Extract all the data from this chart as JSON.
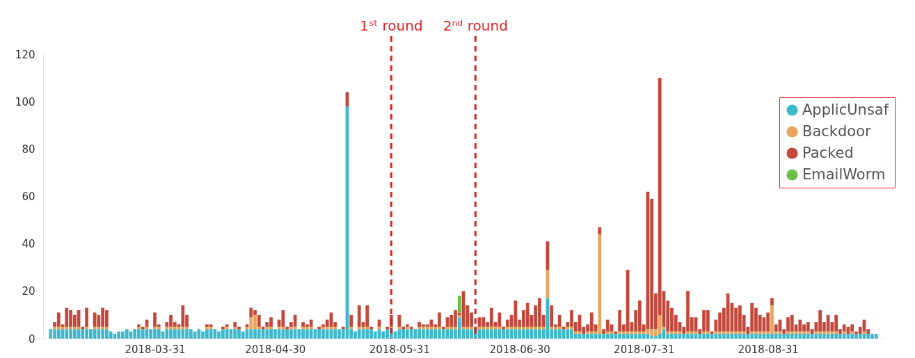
{
  "chart_data": {
    "type": "bar",
    "stacked": true,
    "x": [
      "2018-03-05",
      "2018-03-06",
      "2018-03-07",
      "2018-03-08",
      "2018-03-09",
      "2018-03-10",
      "2018-03-11",
      "2018-03-12",
      "2018-03-13",
      "2018-03-14",
      "2018-03-15",
      "2018-03-16",
      "2018-03-17",
      "2018-03-18",
      "2018-03-19",
      "2018-03-20",
      "2018-03-21",
      "2018-03-22",
      "2018-03-23",
      "2018-03-24",
      "2018-03-25",
      "2018-03-26",
      "2018-03-27",
      "2018-03-28",
      "2018-03-29",
      "2018-03-30",
      "2018-03-31",
      "2018-04-01",
      "2018-04-02",
      "2018-04-03",
      "2018-04-04",
      "2018-04-05",
      "2018-04-06",
      "2018-04-07",
      "2018-04-08",
      "2018-04-09",
      "2018-04-10",
      "2018-04-11",
      "2018-04-12",
      "2018-04-13",
      "2018-04-14",
      "2018-04-15",
      "2018-04-16",
      "2018-04-17",
      "2018-04-18",
      "2018-04-19",
      "2018-04-20",
      "2018-04-21",
      "2018-04-22",
      "2018-04-23",
      "2018-04-24",
      "2018-04-25",
      "2018-04-26",
      "2018-04-27",
      "2018-04-28",
      "2018-04-29",
      "2018-04-30",
      "2018-05-01",
      "2018-05-02",
      "2018-05-03",
      "2018-05-04",
      "2018-05-05",
      "2018-05-06",
      "2018-05-07",
      "2018-05-08",
      "2018-05-09",
      "2018-05-10",
      "2018-05-11",
      "2018-05-12",
      "2018-05-13",
      "2018-05-14",
      "2018-05-15",
      "2018-05-16",
      "2018-05-17",
      "2018-05-18",
      "2018-05-19",
      "2018-05-20",
      "2018-05-21",
      "2018-05-22",
      "2018-05-23",
      "2018-05-24",
      "2018-05-25",
      "2018-05-26",
      "2018-05-27",
      "2018-05-28",
      "2018-05-29",
      "2018-05-30",
      "2018-05-31",
      "2018-06-01",
      "2018-06-02",
      "2018-06-03",
      "2018-06-04",
      "2018-06-05",
      "2018-06-06",
      "2018-06-07",
      "2018-06-08",
      "2018-06-09",
      "2018-06-10",
      "2018-06-11",
      "2018-06-12",
      "2018-06-13",
      "2018-06-14",
      "2018-06-15",
      "2018-06-16",
      "2018-06-17",
      "2018-06-18",
      "2018-06-19",
      "2018-06-20",
      "2018-06-21",
      "2018-06-22",
      "2018-06-23",
      "2018-06-24",
      "2018-06-25",
      "2018-06-26",
      "2018-06-27",
      "2018-06-28",
      "2018-06-29",
      "2018-06-30",
      "2018-07-01",
      "2018-07-02",
      "2018-07-03",
      "2018-07-04",
      "2018-07-05",
      "2018-07-06",
      "2018-07-07",
      "2018-07-08",
      "2018-07-09",
      "2018-07-10",
      "2018-07-11",
      "2018-07-12",
      "2018-07-13",
      "2018-07-14",
      "2018-07-15",
      "2018-07-16",
      "2018-07-17",
      "2018-07-18",
      "2018-07-19",
      "2018-07-20",
      "2018-07-21",
      "2018-07-22",
      "2018-07-23",
      "2018-07-24",
      "2018-07-25",
      "2018-07-26",
      "2018-07-27",
      "2018-07-28",
      "2018-07-29",
      "2018-07-30",
      "2018-07-31",
      "2018-08-01",
      "2018-08-02",
      "2018-08-03",
      "2018-08-04",
      "2018-08-05",
      "2018-08-06",
      "2018-08-07",
      "2018-08-08",
      "2018-08-09",
      "2018-08-10",
      "2018-08-11",
      "2018-08-12",
      "2018-08-13",
      "2018-08-14",
      "2018-08-15",
      "2018-08-16",
      "2018-08-17",
      "2018-08-18",
      "2018-08-19",
      "2018-08-20",
      "2018-08-21",
      "2018-08-22",
      "2018-08-23",
      "2018-08-24",
      "2018-08-25",
      "2018-08-26",
      "2018-08-27",
      "2018-08-28",
      "2018-08-29",
      "2018-08-30",
      "2018-08-31",
      "2018-09-01",
      "2018-09-02",
      "2018-09-03",
      "2018-09-04",
      "2018-09-05",
      "2018-09-06",
      "2018-09-07",
      "2018-09-08",
      "2018-09-09",
      "2018-09-10",
      "2018-09-11",
      "2018-09-12",
      "2018-09-13",
      "2018-09-14",
      "2018-09-15",
      "2018-09-16",
      "2018-09-17",
      "2018-09-18",
      "2018-09-19",
      "2018-09-20",
      "2018-09-21",
      "2018-09-22",
      "2018-09-23",
      "2018-09-24",
      "2018-09-25",
      "2018-09-26",
      "2018-09-27"
    ],
    "series": [
      {
        "name": "ApplicUnsaf",
        "color": "#3fb8cc",
        "values": [
          4,
          4,
          4,
          4,
          4,
          4,
          4,
          4,
          4,
          4,
          4,
          4,
          4,
          4,
          4,
          3,
          2,
          3,
          3,
          4,
          3,
          4,
          4,
          4,
          4,
          4,
          4,
          4,
          3,
          4,
          4,
          4,
          4,
          4,
          4,
          4,
          3,
          4,
          3,
          4,
          4,
          4,
          3,
          4,
          4,
          4,
          4,
          4,
          3,
          4,
          4,
          4,
          4,
          4,
          4,
          4,
          4,
          4,
          4,
          4,
          4,
          4,
          4,
          4,
          4,
          4,
          4,
          4,
          4,
          4,
          4,
          4,
          4,
          4,
          98,
          4,
          3,
          4,
          4,
          4,
          4,
          3,
          4,
          3,
          4,
          4,
          3,
          4,
          4,
          4,
          4,
          4,
          4,
          4,
          4,
          4,
          4,
          4,
          4,
          4,
          4,
          4,
          9,
          4,
          4,
          4,
          4,
          4,
          4,
          4,
          4,
          4,
          4,
          4,
          4,
          4,
          4,
          4,
          4,
          4,
          4,
          4,
          4,
          4,
          17,
          4,
          4,
          4,
          4,
          4,
          4,
          2,
          2,
          2,
          2,
          2,
          2,
          2,
          2,
          2,
          2,
          2,
          2,
          2,
          2,
          2,
          2,
          2,
          2,
          2,
          1,
          1,
          2,
          4,
          2,
          2,
          2,
          2,
          2,
          2,
          2,
          2,
          2,
          2,
          2,
          2,
          2,
          2,
          2,
          2,
          2,
          2,
          2,
          2,
          2,
          2,
          2,
          2,
          2,
          2,
          2,
          2,
          2,
          2,
          2,
          2,
          2,
          2,
          2,
          2,
          2,
          2,
          2,
          2,
          2,
          2,
          2,
          2,
          2,
          2,
          2,
          2,
          2,
          2,
          2,
          2,
          2
        ]
      },
      {
        "name": "Backdoor",
        "color": "#e8a55e",
        "values": [
          0,
          1,
          1,
          1,
          1,
          1,
          1,
          1,
          0,
          1,
          0,
          1,
          1,
          1,
          1,
          0,
          0,
          0,
          0,
          0,
          0,
          0,
          1,
          0,
          1,
          0,
          1,
          1,
          0,
          1,
          1,
          1,
          1,
          1,
          1,
          0,
          0,
          0,
          0,
          1,
          1,
          0,
          0,
          0,
          1,
          0,
          1,
          0,
          0,
          1,
          5,
          6,
          1,
          0,
          1,
          1,
          0,
          1,
          1,
          0,
          1,
          1,
          0,
          1,
          1,
          1,
          0,
          0,
          1,
          1,
          1,
          1,
          0,
          0,
          0,
          1,
          0,
          1,
          1,
          1,
          0,
          0,
          1,
          0,
          0,
          1,
          0,
          1,
          0,
          1,
          0,
          0,
          1,
          1,
          1,
          1,
          1,
          1,
          0,
          1,
          1,
          1,
          1,
          1,
          1,
          1,
          0,
          1,
          1,
          1,
          1,
          1,
          1,
          0,
          1,
          1,
          1,
          1,
          1,
          1,
          1,
          1,
          1,
          1,
          12,
          1,
          1,
          1,
          0,
          1,
          1,
          1,
          1,
          0,
          1,
          1,
          1,
          42,
          0,
          1,
          1,
          0,
          1,
          1,
          1,
          1,
          1,
          1,
          1,
          2,
          3,
          3,
          8,
          1,
          1,
          1,
          1,
          1,
          0,
          1,
          1,
          1,
          0,
          1,
          1,
          0,
          1,
          1,
          1,
          1,
          1,
          1,
          1,
          1,
          0,
          1,
          1,
          1,
          1,
          1,
          12,
          1,
          1,
          0,
          1,
          1,
          1,
          1,
          1,
          1,
          0,
          1,
          1,
          1,
          1,
          1,
          1,
          0,
          1,
          0,
          1,
          0,
          0,
          1,
          0,
          0,
          0
        ]
      },
      {
        "name": "Packed",
        "color": "#c1483a",
        "values": [
          0,
          2,
          6,
          1,
          8,
          7,
          5,
          7,
          1,
          8,
          0,
          6,
          5,
          8,
          7,
          0,
          0,
          0,
          0,
          0,
          0,
          0,
          1,
          1,
          3,
          0,
          6,
          1,
          0,
          2,
          5,
          2,
          1,
          9,
          5,
          0,
          0,
          0,
          0,
          1,
          1,
          0,
          0,
          1,
          1,
          0,
          2,
          1,
          0,
          1,
          4,
          2,
          5,
          1,
          2,
          4,
          0,
          3,
          7,
          1,
          2,
          5,
          0,
          2,
          1,
          3,
          0,
          1,
          1,
          3,
          6,
          2,
          0,
          1,
          6,
          5,
          0,
          9,
          2,
          9,
          1,
          0,
          3,
          0,
          1,
          5,
          0,
          5,
          1,
          1,
          1,
          0,
          2,
          1,
          1,
          3,
          1,
          6,
          1,
          4,
          5,
          7,
          1,
          15,
          9,
          6,
          1,
          4,
          4,
          2,
          8,
          2,
          6,
          1,
          3,
          5,
          11,
          3,
          7,
          10,
          5,
          9,
          12,
          5,
          12,
          9,
          1,
          5,
          1,
          2,
          7,
          4,
          7,
          3,
          3,
          8,
          3,
          3,
          2,
          5,
          3,
          1,
          9,
          3,
          26,
          4,
          9,
          13,
          3,
          58,
          55,
          15,
          100,
          15,
          13,
          10,
          7,
          4,
          3,
          17,
          6,
          6,
          2,
          9,
          9,
          1,
          5,
          8,
          10,
          16,
          12,
          10,
          11,
          7,
          3,
          12,
          10,
          7,
          6,
          8,
          3,
          3,
          5,
          2,
          6,
          7,
          3,
          5,
          3,
          4,
          2,
          4,
          9,
          4,
          7,
          4,
          7,
          2,
          3,
          3,
          3,
          1,
          3,
          5,
          2,
          0,
          0
        ]
      },
      {
        "name": "EmailWorm",
        "color": "#6cc04a",
        "values": [
          null,
          null,
          null,
          null,
          null,
          null,
          null,
          null,
          null,
          null,
          null,
          null,
          null,
          null,
          null,
          null,
          null,
          null,
          null,
          null,
          null,
          null,
          null,
          null,
          null,
          null,
          null,
          null,
          null,
          null,
          null,
          null,
          null,
          null,
          null,
          null,
          null,
          null,
          null,
          null,
          null,
          null,
          null,
          null,
          null,
          null,
          null,
          null,
          null,
          null,
          null,
          null,
          null,
          null,
          null,
          null,
          null,
          null,
          null,
          null,
          null,
          null,
          null,
          null,
          null,
          null,
          null,
          null,
          null,
          null,
          null,
          null,
          null,
          null,
          null,
          null,
          null,
          null,
          null,
          null,
          null,
          null,
          null,
          null,
          null,
          null,
          null,
          null,
          null,
          null,
          null,
          null,
          null,
          null,
          null,
          null,
          null,
          null,
          null,
          null,
          null,
          null,
          7,
          null,
          null,
          null,
          null,
          null,
          null,
          null,
          null,
          null,
          null,
          null,
          null,
          null,
          null,
          null,
          null,
          null,
          null,
          null,
          null,
          null,
          null,
          null,
          null,
          null,
          null,
          null,
          null,
          null,
          null,
          null,
          null,
          null,
          null,
          null,
          null,
          null,
          null,
          null,
          null,
          null,
          null,
          null,
          null,
          null,
          null,
          null,
          null,
          null,
          null,
          null,
          null,
          null,
          null,
          null,
          null,
          null,
          null,
          null,
          null,
          null,
          null,
          null,
          null,
          null,
          null,
          null,
          null,
          null,
          null,
          null,
          null,
          null,
          null,
          null,
          null,
          null,
          null,
          null,
          null,
          null,
          null,
          null,
          null,
          null,
          null,
          null,
          null,
          null,
          null,
          null,
          null,
          null,
          null,
          null,
          null,
          null,
          null,
          null,
          null,
          null,
          null,
          null,
          null
        ]
      }
    ],
    "xlim": [
      "2018-03-04",
      "2018-09-28"
    ],
    "xticks": [
      "2018-03-31",
      "2018-04-30",
      "2018-05-31",
      "2018-06-30",
      "2018-07-31",
      "2018-08-31"
    ],
    "ylim": [
      0,
      120
    ],
    "yticks": [
      0,
      20,
      40,
      60,
      80,
      100,
      120
    ],
    "ref_lines": [
      {
        "axis": "x",
        "value": "2018-05-29",
        "label": "1ˢᵗ round",
        "color": "#e0201f",
        "line_style": "dashed"
      },
      {
        "axis": "x",
        "value": "2018-06-19",
        "label": "2ⁿᵈ round",
        "color": "#e0201f",
        "line_style": "dashed"
      }
    ],
    "legend": "right",
    "grid": false
  }
}
